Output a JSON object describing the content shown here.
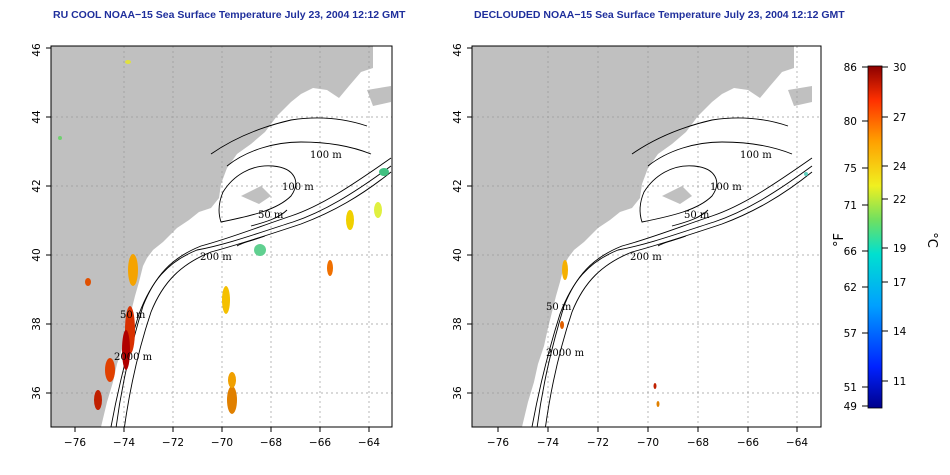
{
  "panels": [
    {
      "title": "RU COOL NOAA−15 Sea Surface Temperature July 23, 2004 12:12 GMT"
    },
    {
      "title": "DECLOUDED NOAA−15 Sea Surface Temperature July 23, 2004 12:12 GMT"
    }
  ],
  "axes": {
    "x_ticks": [
      "−76",
      "−74",
      "−72",
      "−70",
      "−68",
      "−66",
      "−64"
    ],
    "y_ticks": [
      "36",
      "38",
      "40",
      "42",
      "44",
      "46"
    ]
  },
  "contour_labels": [
    "100 m",
    "100 m",
    "50 m",
    "200 m",
    "50 m",
    "2000 m"
  ],
  "colorbar": {
    "f_label": "°F",
    "c_label": "°C",
    "f_ticks": [
      "86",
      "80",
      "75",
      "71",
      "66",
      "62",
      "57",
      "51",
      "49"
    ],
    "c_ticks": [
      "30",
      "27",
      "24",
      "22",
      "19",
      "17",
      "14",
      "11"
    ]
  },
  "colors": {
    "land": "#c0c0c0",
    "ocean": "#ffffff",
    "contour": "#000000",
    "grid": "#9a9a9a",
    "title": "#1f2f9c"
  }
}
